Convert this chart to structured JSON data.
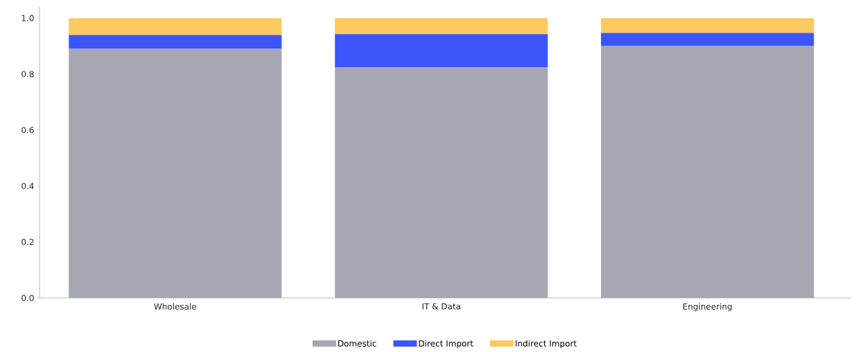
{
  "chart_data": {
    "type": "bar",
    "stacked": true,
    "categories": [
      "Wholesale",
      "IT & Data",
      "Engineering"
    ],
    "series": [
      {
        "name": "Domestic",
        "color": "#a5a7b2",
        "values": [
          0.89,
          0.824,
          0.9
        ]
      },
      {
        "name": "Direct Import",
        "color": "#3b55f8",
        "values": [
          0.05,
          0.119,
          0.047
        ]
      },
      {
        "name": "Indirect Import",
        "color": "#fdc85e",
        "values": [
          0.06,
          0.057,
          0.053
        ]
      }
    ],
    "ylim": [
      0,
      1.04
    ],
    "yticks": [
      {
        "value": 0,
        "label": "0.0"
      },
      {
        "value": 0.2,
        "label": "0.2"
      },
      {
        "value": 0.4,
        "label": "0.4"
      },
      {
        "value": 0.6,
        "label": "0.6"
      },
      {
        "value": 0.8,
        "label": "0.8"
      },
      {
        "value": 1.0,
        "label": "1.0"
      }
    ],
    "legend": "bottom"
  }
}
